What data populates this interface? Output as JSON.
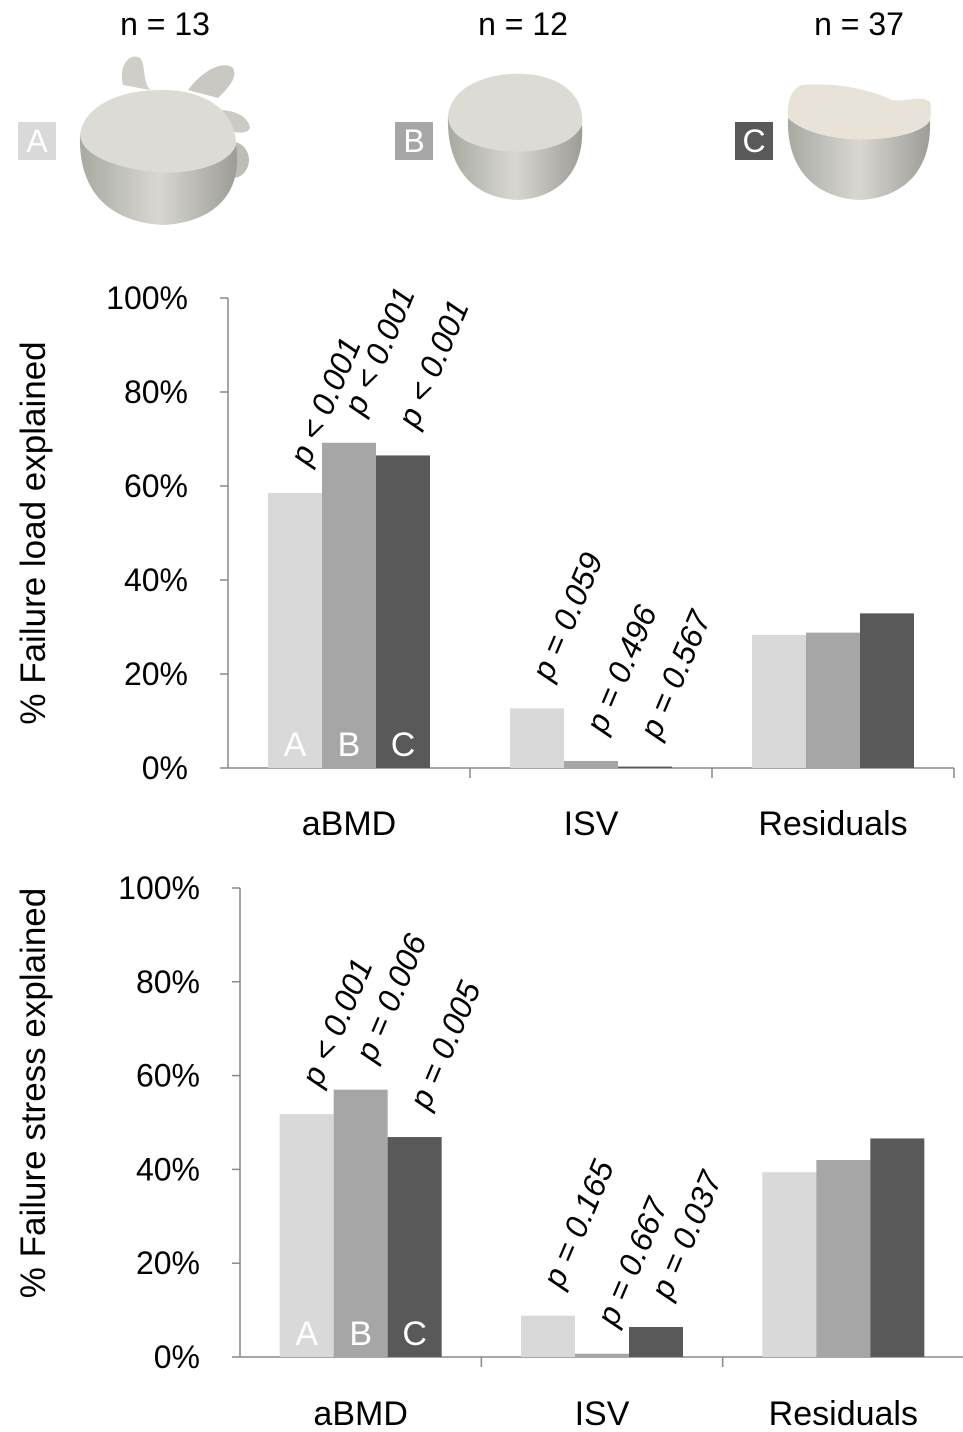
{
  "groups": [
    {
      "letter": "A",
      "n_label": "n = 13",
      "color": "#d9d9d9"
    },
    {
      "letter": "B",
      "n_label": "n = 12",
      "color": "#a6a6a6"
    },
    {
      "letter": "C",
      "n_label": "n = 37",
      "color": "#595959"
    }
  ],
  "chart_data": [
    {
      "type": "bar",
      "ylabel": "% Failure load explained",
      "ylim": [
        0,
        100
      ],
      "yticks": [
        "0%",
        "20%",
        "40%",
        "60%",
        "80%",
        "100%"
      ],
      "categories": [
        "aBMD",
        "ISV",
        "Residuals"
      ],
      "series": [
        {
          "name": "A",
          "values": [
            58.5,
            12.7,
            28.3
          ]
        },
        {
          "name": "B",
          "values": [
            69.2,
            1.5,
            28.8
          ]
        },
        {
          "name": "C",
          "values": [
            66.5,
            0.3,
            32.9
          ]
        }
      ],
      "annotations": [
        [
          "p < 0.001",
          "p < 0.001",
          "p < 0.001"
        ],
        [
          "p = 0.059",
          "p = 0.496",
          "p = 0.567"
        ],
        []
      ],
      "bar_letters": [
        "A",
        "B",
        "C"
      ]
    },
    {
      "type": "bar",
      "ylabel": "% Failure stress explained",
      "ylim": [
        0,
        100
      ],
      "yticks": [
        "0%",
        "20%",
        "40%",
        "60%",
        "80%",
        "100%"
      ],
      "categories": [
        "aBMD",
        "ISV",
        "Residuals"
      ],
      "series": [
        {
          "name": "A",
          "values": [
            51.8,
            8.8,
            39.4
          ]
        },
        {
          "name": "B",
          "values": [
            57.0,
            0.7,
            42.0
          ]
        },
        {
          "name": "C",
          "values": [
            46.9,
            6.4,
            46.6
          ]
        }
      ],
      "annotations": [
        [
          "p < 0.001",
          "p = 0.006",
          "p = 0.005"
        ],
        [
          "p = 0.165",
          "p = 0.667",
          "p = 0.037"
        ],
        []
      ],
      "bar_letters": [
        "A",
        "B",
        "C"
      ]
    }
  ]
}
